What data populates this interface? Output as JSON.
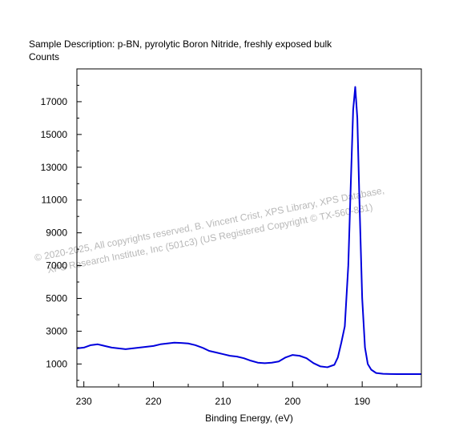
{
  "chart_data": {
    "type": "line",
    "title": "Sample Description:  p-BN, pyrolytic Boron Nitride, freshly exposed bulk",
    "ylabel": "Counts",
    "xlabel": "Binding Energy, (eV)",
    "xlim": [
      231,
      181.5
    ],
    "ylim": [
      -400,
      19000
    ],
    "x_reversed": true,
    "x_ticks": [
      230,
      220,
      210,
      200,
      190
    ],
    "y_ticks": [
      1000,
      3000,
      5000,
      7000,
      9000,
      11000,
      13000,
      15000,
      17000
    ],
    "series": [
      {
        "color": "#0000dd",
        "x": [
          231,
          230,
          229,
          228,
          227,
          226,
          225,
          224,
          223,
          222,
          221,
          220,
          219,
          218,
          217,
          216,
          215,
          214,
          213,
          212,
          211,
          210,
          209,
          208,
          207,
          206,
          205,
          204,
          203,
          202,
          201,
          200,
          199,
          198,
          197,
          196,
          195,
          194,
          193.5,
          193,
          192.5,
          192,
          191.6,
          191.3,
          191,
          190.7,
          190.4,
          190,
          189.6,
          189.2,
          188.7,
          188,
          187,
          186,
          185,
          184,
          183,
          182,
          181.5
        ],
        "y": [
          1950,
          2000,
          2150,
          2200,
          2100,
          2000,
          1950,
          1900,
          1950,
          2000,
          2050,
          2100,
          2200,
          2250,
          2300,
          2280,
          2250,
          2150,
          2000,
          1800,
          1700,
          1600,
          1500,
          1450,
          1350,
          1200,
          1080,
          1050,
          1080,
          1150,
          1400,
          1550,
          1500,
          1350,
          1050,
          850,
          800,
          950,
          1400,
          2300,
          3300,
          7000,
          12500,
          16500,
          17900,
          16000,
          11000,
          5000,
          2000,
          1000,
          650,
          450,
          400,
          390,
          385,
          380,
          380,
          380,
          380
        ]
      }
    ]
  },
  "watermark": {
    "line1": "©  2020-2025,  All copyrights reserved,   B. Vincent Crist,  XPS Library,  XPS Database,",
    "line2": "XPS Research Institute, Inc (501c3)   (US Registered Copyright © TX-560-881)"
  }
}
